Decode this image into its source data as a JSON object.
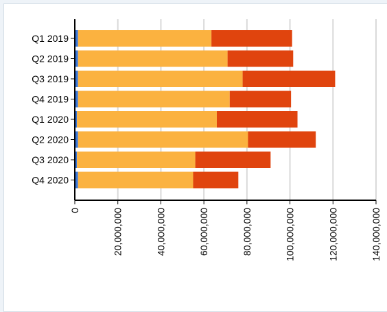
{
  "chart_data": {
    "type": "bar",
    "orientation": "horizontal",
    "stacked": true,
    "categories": [
      "Q1 2019",
      "Q2 2019",
      "Q3 2019",
      "Q4 2019",
      "Q1 2020",
      "Q2 2020",
      "Q3 2020",
      "Q4 2020"
    ],
    "series": [
      {
        "color": "#3a77d8",
        "values": [
          1500000,
          1500000,
          1500000,
          1500000,
          1000000,
          1500000,
          1000000,
          1500000
        ]
      },
      {
        "color": "#fbb240",
        "values": [
          62000000,
          69500000,
          76500000,
          70500000,
          65000000,
          79000000,
          55000000,
          53500000
        ]
      },
      {
        "color": "#e0440e",
        "values": [
          37500000,
          30500000,
          43000000,
          28500000,
          37500000,
          31500000,
          35000000,
          21000000
        ]
      }
    ],
    "xlim": [
      0,
      140000000
    ],
    "xticks": [
      0,
      20000000,
      40000000,
      60000000,
      80000000,
      100000000,
      120000000,
      140000000
    ],
    "xtick_labels": [
      "0",
      "20,000,000",
      "40,000,000",
      "60,000,000",
      "80,000,000",
      "100,000,000",
      "120,000,000",
      "140,000,000"
    ],
    "grid": true,
    "legend": "none",
    "title": "",
    "xlabel": "",
    "ylabel": ""
  }
}
